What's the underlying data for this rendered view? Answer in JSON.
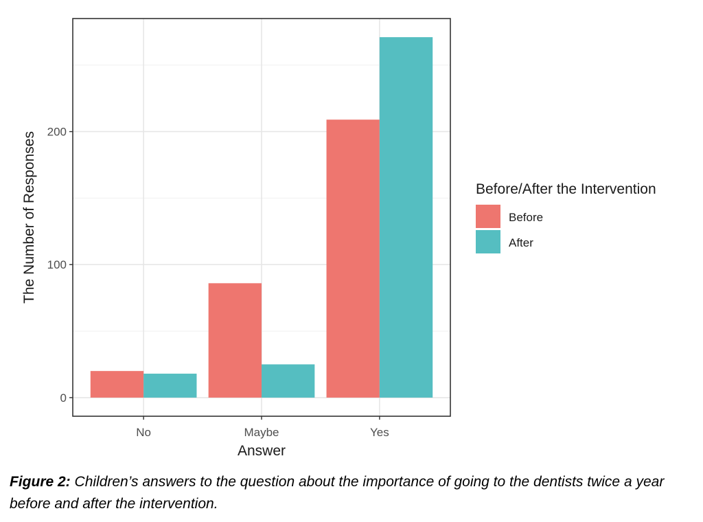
{
  "chart_data": {
    "type": "bar",
    "categories": [
      "No",
      "Maybe",
      "Yes"
    ],
    "series": [
      {
        "name": "Before",
        "values": [
          20,
          86,
          209
        ],
        "color": "#ee766f"
      },
      {
        "name": "After",
        "values": [
          18,
          25,
          271
        ],
        "color": "#55bec1"
      }
    ],
    "xlabel": "Answer",
    "ylabel": "The Number of Responses",
    "yticks": [
      0,
      100,
      200
    ],
    "ylim": [
      -14,
      285
    ],
    "grid": true,
    "legend": {
      "title": "Before/After the Intervention",
      "position": "right"
    }
  },
  "caption": {
    "label": "Figure 2:",
    "text": " Children’s answers to the question about the importance of going to the dentists twice a year before and after the intervention."
  }
}
